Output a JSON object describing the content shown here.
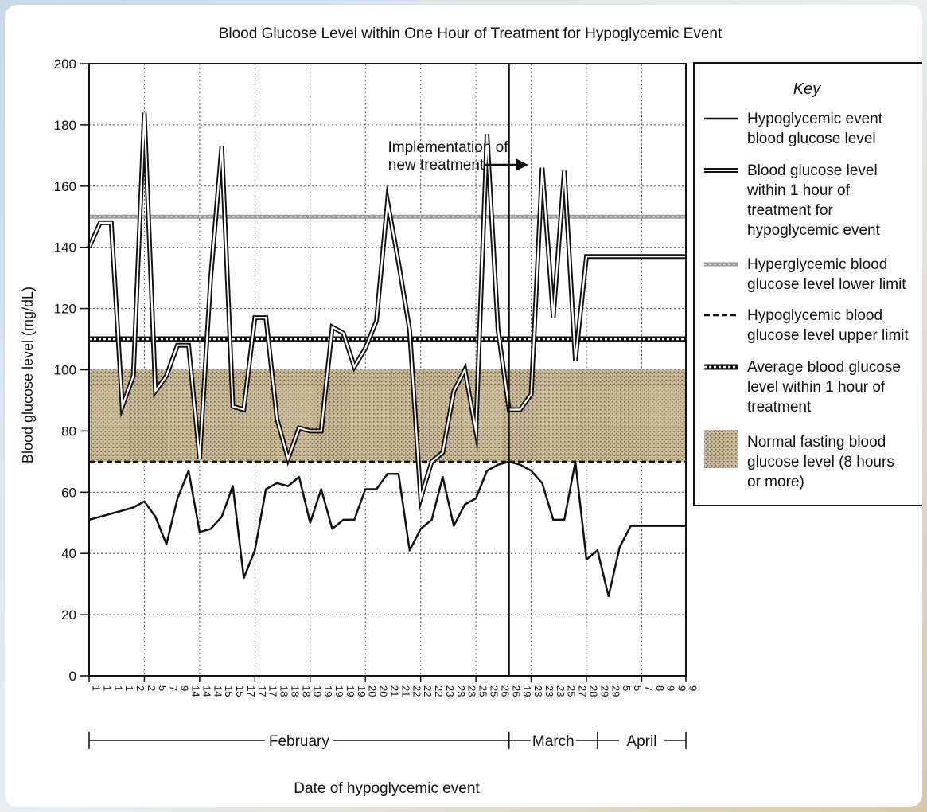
{
  "chart_data": {
    "type": "line",
    "title": "Blood Glucose Level within One Hour of Treatment for Hypoglycemic Event",
    "xlabel": "Date of hypoglycemic event",
    "ylabel": "Blood glucose level (mg/dL)",
    "ylim": [
      0,
      200
    ],
    "yticks": [
      0,
      20,
      40,
      60,
      80,
      100,
      120,
      140,
      160,
      180,
      200
    ],
    "grid": true,
    "x": [
      "1",
      "1",
      "1",
      "1",
      "2",
      "2",
      "5",
      "7",
      "9",
      "14",
      "14",
      "14",
      "15",
      "15",
      "17",
      "17",
      "17",
      "18",
      "18",
      "18",
      "19",
      "19",
      "19",
      "19",
      "19",
      "20",
      "20",
      "21",
      "21",
      "22",
      "22",
      "22",
      "23",
      "23",
      "23",
      "25",
      "25",
      "26",
      "26",
      "19",
      "23",
      "23",
      "23",
      "25",
      "27",
      "28",
      "29",
      "29",
      "5",
      "5",
      "7",
      "8",
      "9",
      "9",
      "9"
    ],
    "months": [
      {
        "label": "February",
        "from_index": 0,
        "to_index": 38
      },
      {
        "label": "March",
        "from_index": 38,
        "to_index": 46
      },
      {
        "label": "April",
        "from_index": 46,
        "to_index": 54
      }
    ],
    "series": [
      {
        "name": "Hypoglycemic event blood glucose level",
        "style": "solid",
        "values": [
          51,
          52,
          53,
          54,
          55,
          57,
          52,
          43,
          58,
          67,
          47,
          48,
          52,
          62,
          32,
          41,
          61,
          63,
          62,
          65,
          50,
          61,
          48,
          51,
          51,
          61,
          61,
          66,
          66,
          41,
          48,
          51,
          65,
          49,
          56,
          58,
          67,
          69,
          70,
          69,
          67,
          63,
          51,
          51,
          70,
          38,
          41,
          26,
          42,
          49,
          49,
          49,
          49,
          49,
          49
        ]
      },
      {
        "name": "Blood glucose level within 1 hour of treatment for hypoglycemic event",
        "style": "double",
        "values": [
          140,
          148,
          148,
          88,
          98,
          184,
          93,
          98,
          108,
          108,
          71,
          130,
          173,
          88,
          87,
          117,
          117,
          84,
          71,
          81,
          80,
          80,
          114,
          112,
          101,
          107,
          116,
          155,
          135,
          113,
          58,
          70,
          73,
          93,
          100,
          80,
          177,
          113,
          87,
          87,
          92,
          166,
          117,
          165,
          103,
          137,
          137,
          137,
          137,
          137,
          137,
          137,
          137,
          137,
          137
        ]
      }
    ],
    "reference_lines": [
      {
        "name": "Hyperglycemic blood glucose level lower limit",
        "value": 150,
        "style": "dotted-gray"
      },
      {
        "name": "Hypoglycemic blood glucose level upper limit",
        "value": 70,
        "style": "dashed"
      },
      {
        "name": "Average blood glucose level within 1 hour of treatment",
        "value": 110,
        "style": "checkered"
      }
    ],
    "band": {
      "name": "Normal fasting blood glucose level (8 hours or more)",
      "from": 70,
      "to": 100
    },
    "annotation": {
      "text_line1": "Implementation of",
      "text_line2": "new treatment",
      "x_index": 38
    },
    "legend": {
      "title": "Key",
      "placement": "right",
      "entries": [
        {
          "lines": [
            "Hypoglycemic event",
            "blood glucose level"
          ],
          "style": "solid"
        },
        {
          "lines": [
            "Blood glucose level",
            "within 1 hour of",
            "treatment for",
            "hypoglycemic event"
          ],
          "style": "double"
        },
        {
          "lines": [
            "Hyperglycemic blood",
            "glucose level lower limit"
          ],
          "style": "dotted-gray"
        },
        {
          "lines": [
            "Hypoglycemic blood",
            "glucose level upper limit"
          ],
          "style": "dashed"
        },
        {
          "lines": [
            "Average blood glucose",
            "level within 1 hour of",
            "treatment"
          ],
          "style": "checkered"
        },
        {
          "lines": [
            "Normal fasting blood",
            "glucose level (8 hours",
            "or more)"
          ],
          "style": "band"
        }
      ]
    },
    "colors": {
      "band_fill": "#cdbf9f",
      "band_dots": "#6e5c3c",
      "dotted_gray": "#9a9a9a",
      "line": "#111111"
    }
  }
}
